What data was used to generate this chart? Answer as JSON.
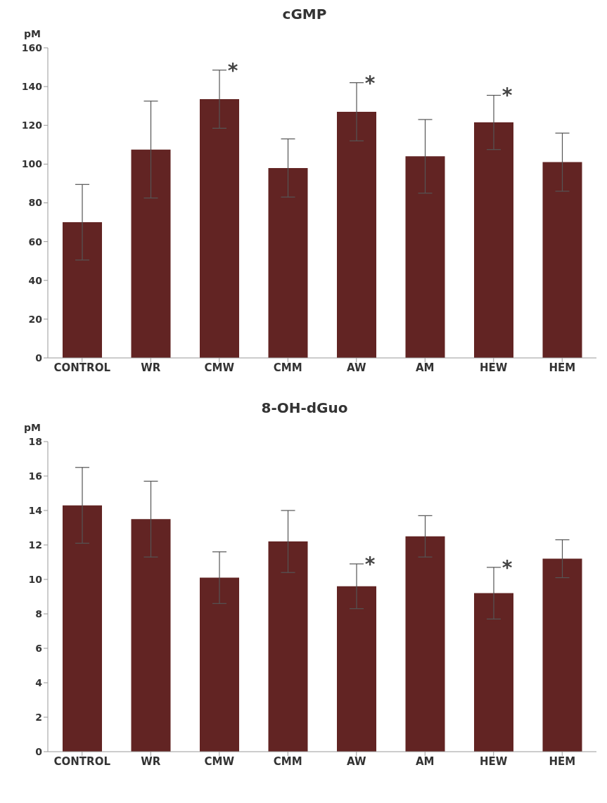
{
  "chart_data": [
    {
      "type": "bar",
      "title": "cGMP",
      "ylabel": "pM",
      "categories": [
        "CONTROL",
        "WR",
        "CMW",
        "CMM",
        "AW",
        "AM",
        "HEW",
        "HEM"
      ],
      "values": [
        70,
        107.5,
        133.5,
        98,
        127,
        104,
        121.5,
        101
      ],
      "errors": [
        19.5,
        25,
        15,
        15,
        15,
        19,
        14,
        15
      ],
      "color": "#622423",
      "ylim": [
        0,
        160
      ],
      "yticks": [
        0,
        20,
        40,
        60,
        80,
        100,
        120,
        140,
        160
      ],
      "grid": false,
      "legend": false,
      "annotations": [
        {
          "text": "*",
          "x": "CMW",
          "y": 148.5
        },
        {
          "text": "*",
          "x": "AW",
          "y": 142
        },
        {
          "text": "*",
          "x": "HEW",
          "y": 135.5
        }
      ]
    },
    {
      "type": "bar",
      "title": "8-OH-dGuo",
      "ylabel": "pM",
      "categories": [
        "CONTROL",
        "WR",
        "CMW",
        "CMM",
        "AW",
        "AM",
        "HEW",
        "HEM"
      ],
      "values": [
        14.3,
        13.5,
        10.1,
        12.2,
        9.6,
        12.5,
        9.2,
        11.2
      ],
      "errors": [
        2.2,
        2.2,
        1.5,
        1.8,
        1.3,
        1.2,
        1.5,
        1.1
      ],
      "color": "#622423",
      "ylim": [
        0,
        18
      ],
      "yticks": [
        0,
        2,
        4,
        6,
        8,
        10,
        12,
        14,
        16,
        18
      ],
      "grid": false,
      "legend": false,
      "annotations": [
        {
          "text": "*",
          "x": "AW",
          "y": 10.9
        },
        {
          "text": "*",
          "x": "HEW",
          "y": 10.7
        }
      ]
    }
  ]
}
